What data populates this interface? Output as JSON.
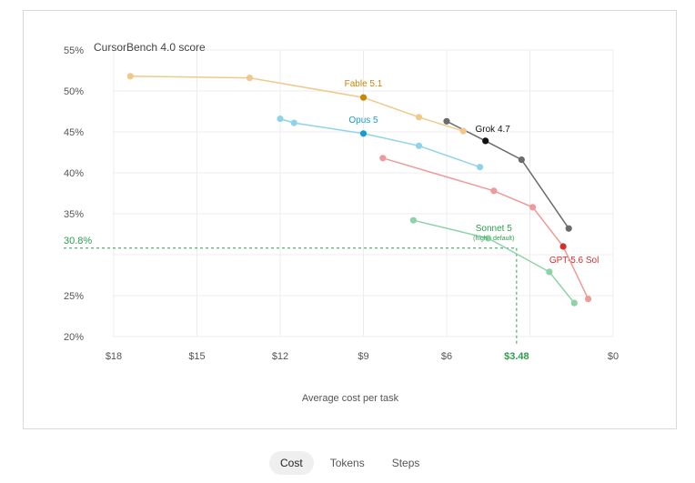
{
  "chart_data": {
    "type": "line",
    "title": "CursorBench 4.0 score",
    "xlabel": "Average cost per task",
    "ylabel": "",
    "xlim": [
      0,
      18.5
    ],
    "x_reversed": true,
    "ylim": [
      19,
      55
    ],
    "x_ticks": [
      {
        "value": 18,
        "label": "$18"
      },
      {
        "value": 15,
        "label": "$15"
      },
      {
        "value": 12,
        "label": "$12"
      },
      {
        "value": 9,
        "label": "$9"
      },
      {
        "value": 6,
        "label": "$6"
      },
      {
        "value": 0,
        "label": "$0"
      }
    ],
    "y_ticks": [
      {
        "value": 55,
        "label": "55%"
      },
      {
        "value": 50,
        "label": "50%"
      },
      {
        "value": 45,
        "label": "45%"
      },
      {
        "value": 40,
        "label": "40%"
      },
      {
        "value": 35,
        "label": "35%"
      },
      {
        "value": 25,
        "label": "25%"
      },
      {
        "value": 20,
        "label": "20%"
      }
    ],
    "grid": true,
    "series": [
      {
        "name": "Fable 5.1",
        "color": "#f0c98a",
        "highlight_color": "#c8860a",
        "x": [
          17.4,
          13.1,
          9.0,
          7.0,
          5.4
        ],
        "y": [
          51.8,
          51.6,
          49.2,
          46.8,
          45.1
        ],
        "highlight_index": 2
      },
      {
        "name": "Opus 5",
        "color": "#8fd3ea",
        "highlight_color": "#1a9bd0",
        "x": [
          12.0,
          11.5,
          9.0,
          7.0,
          4.8
        ],
        "y": [
          46.6,
          46.1,
          44.8,
          43.3,
          40.7
        ],
        "highlight_index": 2
      },
      {
        "name": "Grok 4.7",
        "color": "#6b6b6b",
        "highlight_color": "#111111",
        "x": [
          6.0,
          4.6,
          3.3,
          1.6
        ],
        "y": [
          46.3,
          43.9,
          41.6,
          33.2
        ],
        "highlight_index": 1
      },
      {
        "name": "GPT-5.6 Sol",
        "color": "#ef9a9a",
        "highlight_color": "#d32f2f",
        "x": [
          8.3,
          4.3,
          2.9,
          1.8,
          0.9
        ],
        "y": [
          41.8,
          37.8,
          35.8,
          31.0,
          24.6
        ],
        "highlight_index": 3
      },
      {
        "name": "Sonnet 5",
        "color": "#8ed3a8",
        "highlight_color": "#8ed3a8",
        "x": [
          7.2,
          4.5,
          2.3,
          1.4
        ],
        "y": [
          34.2,
          32.0,
          27.9,
          24.1
        ],
        "highlight_index": -1
      }
    ],
    "annotation": {
      "x": 3.48,
      "x_label": "$3.48",
      "y": 30.8,
      "y_label": "30.8%",
      "label": "Sonnet 5",
      "sublabel": "(high · default)",
      "color": "#2e9d4f"
    }
  },
  "tabs": [
    "Cost",
    "Tokens",
    "Steps"
  ],
  "active_tab": 0
}
